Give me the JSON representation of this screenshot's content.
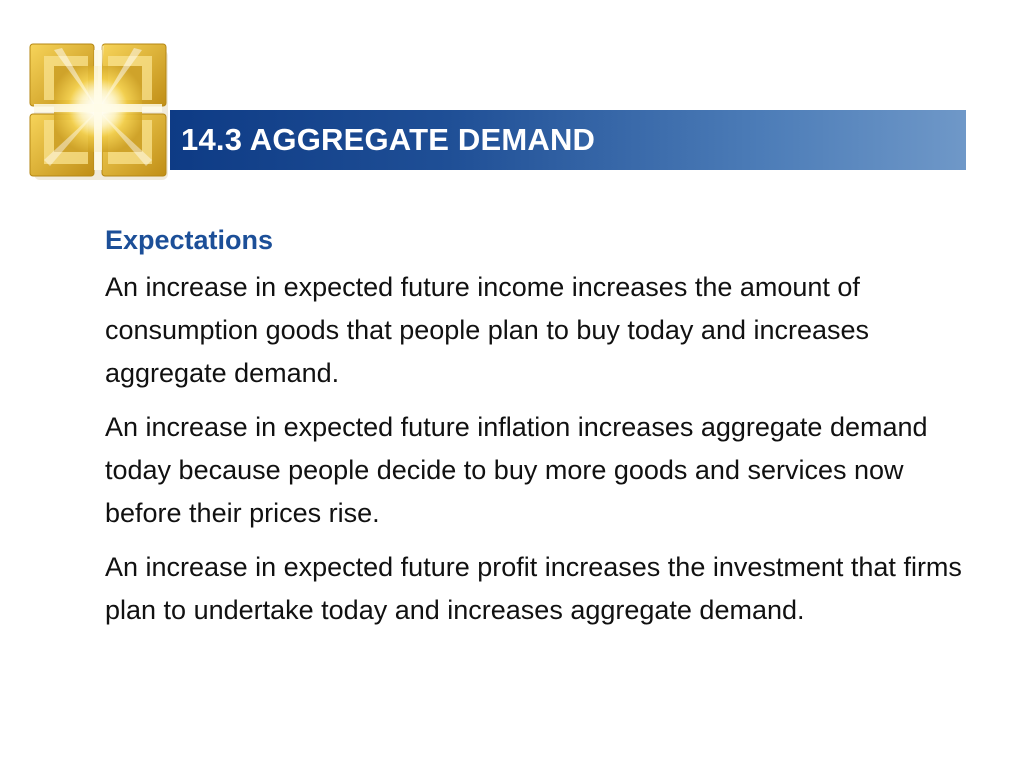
{
  "slide": {
    "title": "14.3 AGGREGATE DEMAND",
    "section_heading": "Expectations",
    "paragraphs": [
      "An increase in expected future income increases the amount of consumption goods that people plan to buy today and increases aggregate demand.",
      "An increase in expected future inflation increases aggregate demand today because people decide to buy more goods and services now before their prices rise.",
      "An increase in expected future profit increases the investment that firms plan to undertake today and increases aggregate demand."
    ]
  },
  "colors": {
    "title_bar_start": "#0e3b85",
    "title_bar_end": "#6f98c8",
    "heading": "#1c4f98",
    "logo_gold": "#e2b62a"
  },
  "icons": {
    "logo": "golden-window-logo"
  }
}
